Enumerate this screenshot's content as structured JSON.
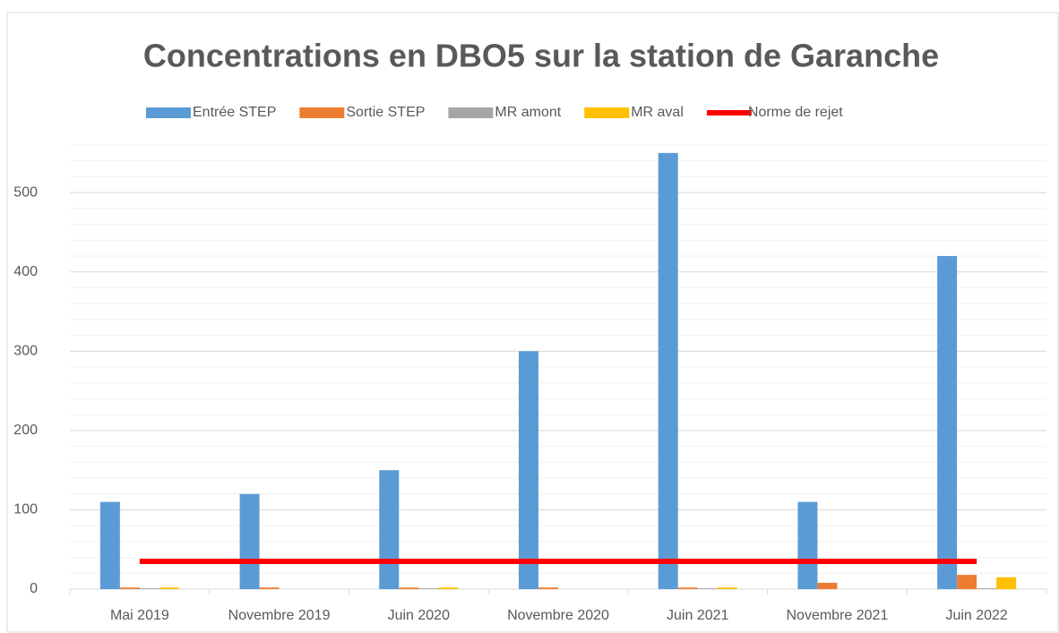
{
  "chart_data": {
    "type": "bar",
    "title": "Concentrations en DBO5 sur la station de Garanche",
    "categories": [
      "Mai 2019",
      "Novembre 2019",
      "Juin 2020",
      "Novembre 2020",
      "Juin 2021",
      "Novembre 2021",
      "Juin 2022"
    ],
    "series": [
      {
        "name": "Entrée STEP",
        "color": "#5b9bd5",
        "values": [
          110,
          120,
          150,
          300,
          550,
          110,
          420
        ]
      },
      {
        "name": "Sortie STEP",
        "color": "#ed7d31",
        "values": [
          2,
          2,
          2,
          2,
          2,
          8,
          18
        ]
      },
      {
        "name": "MR amont",
        "color": "#a5a5a5",
        "values": [
          1,
          null,
          1,
          null,
          1,
          null,
          1
        ]
      },
      {
        "name": "MR aval",
        "color": "#ffc000",
        "values": [
          2,
          null,
          2,
          null,
          2,
          null,
          15
        ]
      },
      {
        "name": "Norme de rejet",
        "color": "#ff0000",
        "type": "line",
        "values": [
          35,
          35,
          35,
          35,
          35,
          35,
          35
        ]
      }
    ],
    "ylim": [
      0,
      560
    ],
    "yticks": [
      0,
      100,
      200,
      300,
      400,
      500
    ],
    "grid": true,
    "minor_grid": true,
    "legend": "top"
  }
}
